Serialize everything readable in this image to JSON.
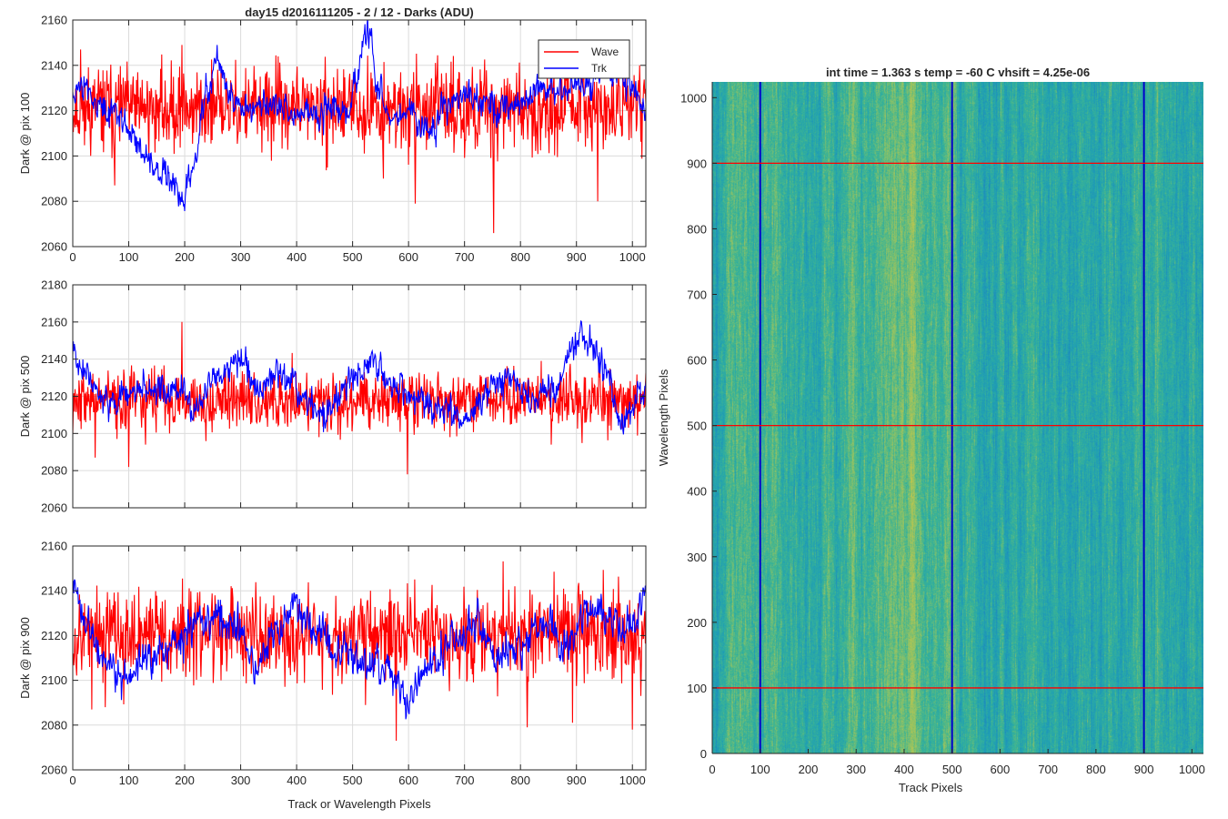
{
  "figure": {
    "title": "day15 d2016111205 - 2 / 12 - Darks (ADU)",
    "common_xlabel": "Track or Wavelength Pixels"
  },
  "chart_data": [
    {
      "type": "line",
      "ylabel": "Dark @ pix 100",
      "xlim": [
        0,
        1024
      ],
      "ylim": [
        2060,
        2160
      ],
      "xticks": [
        0,
        100,
        200,
        300,
        400,
        500,
        600,
        700,
        800,
        900,
        1000
      ],
      "yticks": [
        2060,
        2080,
        2100,
        2120,
        2140,
        2160
      ],
      "grid": true,
      "legend": {
        "position": "top-right",
        "entries": [
          "Wave",
          "Trk"
        ]
      },
      "series": [
        {
          "name": "Wave",
          "color": "#ff0000",
          "style": "noise",
          "mean": 2121,
          "std": 9,
          "seed": 11,
          "spikes": [
            [
              14,
              2147
            ],
            [
              75,
              2087
            ],
            [
              195,
              2149
            ],
            [
              555,
              2090
            ],
            [
              612,
              2079
            ],
            [
              752,
              2066
            ],
            [
              938,
              2080
            ],
            [
              1013,
              2140
            ]
          ]
        },
        {
          "name": "Trk",
          "color": "#0000ff",
          "style": "smooth",
          "noise": 4,
          "seed": 23,
          "keys": [
            [
              0,
              2128
            ],
            [
              20,
              2133
            ],
            [
              50,
              2120
            ],
            [
              80,
              2118
            ],
            [
              110,
              2108
            ],
            [
              140,
              2096
            ],
            [
              160,
              2093
            ],
            [
              180,
              2088
            ],
            [
              198,
              2080
            ],
            [
              215,
              2098
            ],
            [
              240,
              2128
            ],
            [
              255,
              2143
            ],
            [
              290,
              2122
            ],
            [
              330,
              2123
            ],
            [
              370,
              2123
            ],
            [
              400,
              2119
            ],
            [
              430,
              2120
            ],
            [
              460,
              2122
            ],
            [
              490,
              2120
            ],
            [
              505,
              2132
            ],
            [
              520,
              2151
            ],
            [
              528,
              2156
            ],
            [
              545,
              2130
            ],
            [
              575,
              2116
            ],
            [
              600,
              2122
            ],
            [
              630,
              2113
            ],
            [
              660,
              2118
            ],
            [
              700,
              2128
            ],
            [
              730,
              2124
            ],
            [
              760,
              2123
            ],
            [
              800,
              2124
            ],
            [
              830,
              2131
            ],
            [
              860,
              2126
            ],
            [
              880,
              2131
            ],
            [
              910,
              2130
            ],
            [
              940,
              2134
            ],
            [
              975,
              2138
            ],
            [
              1000,
              2129
            ],
            [
              1024,
              2120
            ]
          ]
        }
      ]
    },
    {
      "type": "line",
      "ylabel": "Dark @ pix 500",
      "xlim": [
        0,
        1024
      ],
      "ylim": [
        2060,
        2180
      ],
      "xticks": [
        0,
        100,
        200,
        300,
        400,
        500,
        600,
        700,
        800,
        900,
        1000
      ],
      "yticks": [
        2060,
        2080,
        2100,
        2120,
        2140,
        2160,
        2180
      ],
      "grid": true,
      "series": [
        {
          "name": "Wave",
          "color": "#ff0000",
          "style": "noise",
          "mean": 2118,
          "std": 8,
          "seed": 37,
          "spikes": [
            [
              40,
              2087
            ],
            [
              100,
              2082
            ],
            [
              130,
              2094
            ],
            [
              195,
              2160
            ],
            [
              440,
              2098
            ],
            [
              598,
              2078
            ],
            [
              855,
              2094
            ],
            [
              960,
              2135
            ]
          ]
        },
        {
          "name": "Trk",
          "color": "#0000ff",
          "style": "smooth",
          "noise": 5,
          "seed": 41,
          "keys": [
            [
              0,
              2142
            ],
            [
              20,
              2135
            ],
            [
              60,
              2115
            ],
            [
              100,
              2122
            ],
            [
              140,
              2122
            ],
            [
              180,
              2125
            ],
            [
              220,
              2112
            ],
            [
              260,
              2133
            ],
            [
              300,
              2140
            ],
            [
              330,
              2122
            ],
            [
              360,
              2133
            ],
            [
              390,
              2130
            ],
            [
              420,
              2115
            ],
            [
              450,
              2110
            ],
            [
              500,
              2130
            ],
            [
              540,
              2138
            ],
            [
              580,
              2125
            ],
            [
              620,
              2119
            ],
            [
              660,
              2110
            ],
            [
              700,
              2110
            ],
            [
              740,
              2124
            ],
            [
              780,
              2129
            ],
            [
              820,
              2120
            ],
            [
              860,
              2124
            ],
            [
              890,
              2143
            ],
            [
              910,
              2153
            ],
            [
              930,
              2150
            ],
            [
              950,
              2133
            ],
            [
              980,
              2105
            ],
            [
              1000,
              2115
            ],
            [
              1024,
              2125
            ]
          ]
        }
      ]
    },
    {
      "type": "line",
      "ylabel": "Dark @ pix 900",
      "xlabel": "Track or Wavelength Pixels",
      "xlim": [
        0,
        1024
      ],
      "ylim": [
        2060,
        2160
      ],
      "xticks": [
        0,
        100,
        200,
        300,
        400,
        500,
        600,
        700,
        800,
        900,
        1000
      ],
      "yticks": [
        2060,
        2080,
        2100,
        2120,
        2140,
        2160
      ],
      "grid": true,
      "series": [
        {
          "name": "Wave",
          "color": "#ff0000",
          "style": "noise",
          "mean": 2121,
          "std": 10,
          "seed": 53,
          "spikes": [
            [
              34,
              2087
            ],
            [
              58,
              2088
            ],
            [
              578,
              2073
            ],
            [
              812,
              2079
            ],
            [
              893,
              2081
            ],
            [
              1000,
              2078
            ],
            [
              1015,
              2093
            ]
          ]
        },
        {
          "name": "Trk",
          "color": "#0000ff",
          "style": "smooth",
          "noise": 5,
          "seed": 61,
          "keys": [
            [
              0,
              2141
            ],
            [
              20,
              2125
            ],
            [
              60,
              2108
            ],
            [
              100,
              2100
            ],
            [
              140,
              2112
            ],
            [
              180,
              2115
            ],
            [
              220,
              2125
            ],
            [
              260,
              2127
            ],
            [
              300,
              2120
            ],
            [
              330,
              2106
            ],
            [
              360,
              2120
            ],
            [
              400,
              2130
            ],
            [
              440,
              2122
            ],
            [
              480,
              2112
            ],
            [
              520,
              2108
            ],
            [
              560,
              2104
            ],
            [
              600,
              2092
            ],
            [
              640,
              2108
            ],
            [
              680,
              2118
            ],
            [
              720,
              2126
            ],
            [
              760,
              2110
            ],
            [
              800,
              2113
            ],
            [
              840,
              2126
            ],
            [
              880,
              2115
            ],
            [
              920,
              2130
            ],
            [
              960,
              2127
            ],
            [
              1000,
              2122
            ],
            [
              1024,
              2138
            ]
          ]
        }
      ]
    },
    {
      "type": "heatmap",
      "title": "int time = 1.363 s   temp = -60 C   vhsift = 4.25e-06",
      "xlabel": "Track Pixels",
      "ylabel": "Wavelength Pixels",
      "xlim": [
        0,
        1024
      ],
      "ylim": [
        0,
        1024
      ],
      "xticks": [
        0,
        100,
        200,
        300,
        400,
        500,
        600,
        700,
        800,
        900,
        1000
      ],
      "yticks": [
        0,
        100,
        200,
        300,
        400,
        500,
        600,
        700,
        800,
        900,
        1000
      ],
      "colormap": [
        "#1e86be",
        "#20a0b3",
        "#3bb494",
        "#8fc265",
        "#c6c64a"
      ],
      "base_color": "#2aa7a8",
      "brighter_columns": [
        [
          300,
          470,
          0.55
        ],
        [
          0,
          60,
          0.25
        ]
      ],
      "vertical_lines": {
        "x": [
          100,
          500,
          900
        ],
        "color": "#0000cc"
      },
      "horizontal_lines": {
        "y": [
          100,
          500,
          900
        ],
        "color": "#ff0000"
      }
    }
  ]
}
